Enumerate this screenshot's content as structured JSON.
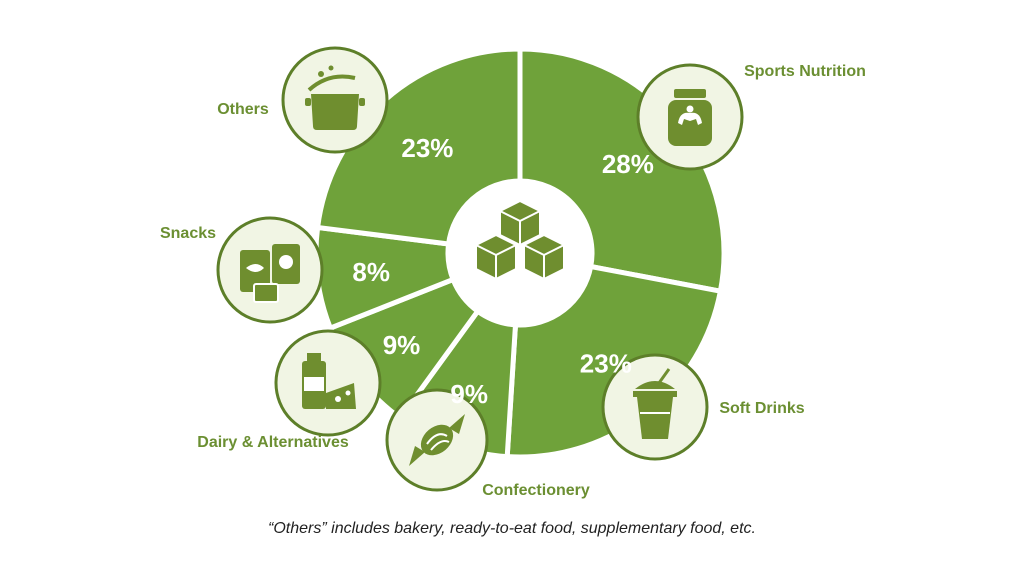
{
  "chart_data": {
    "type": "pie",
    "style": "donut",
    "categories": [
      "Sports Nutrition",
      "Soft Drinks",
      "Confectionery",
      "Dairy & Alternatives",
      "Snacks",
      "Others"
    ],
    "values": [
      28,
      23,
      9,
      9,
      8,
      23
    ],
    "value_labels": [
      "28%",
      "23%",
      "9%",
      "9%",
      "8%",
      "23%"
    ],
    "icons": [
      "protein-jar-icon",
      "cup-icon",
      "candy-icon",
      "milk-cheese-icon",
      "snack-bags-icon",
      "pot-icon"
    ],
    "center_icon": "cubes-icon",
    "footnote": "“Others” includes bakery, ready-to-eat food, supplementary food, etc."
  },
  "colors": {
    "slice": "#6fa23a",
    "label": "#6b8f32",
    "icon_fill": "#6f8e2f",
    "icon_bg": "#f1f5e4",
    "icon_border": "#5d7f29"
  }
}
